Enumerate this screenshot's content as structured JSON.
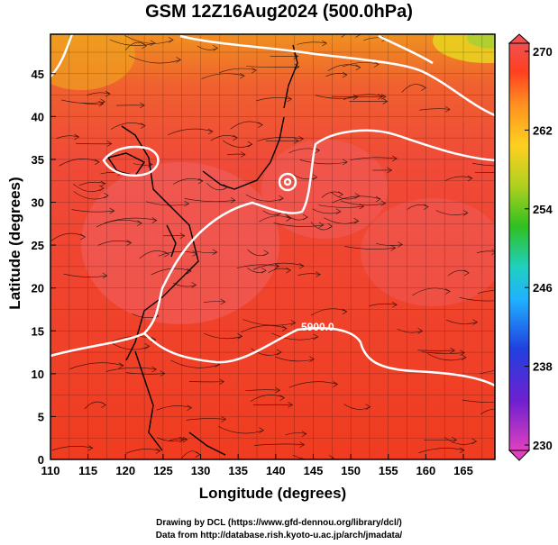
{
  "title": "GSM 12Z16Aug2024 (500.0hPa)",
  "axes": {
    "xlabel": "Longitude (degrees)",
    "ylabel": "Latitude  (degrees)",
    "xticks": [
      "110",
      "115",
      "120",
      "125",
      "130",
      "135",
      "140",
      "145",
      "150",
      "155",
      "160",
      "165"
    ],
    "yticks": [
      "0",
      "5",
      "10",
      "15",
      "20",
      "25",
      "30",
      "35",
      "40",
      "45"
    ]
  },
  "contour_label": "5900.0",
  "colorbar": {
    "min": 230,
    "max": 270,
    "tick_labels": [
      "270",
      "262",
      "254",
      "246",
      "238",
      "230"
    ],
    "stops": [
      "#e040c0",
      "#6020d0",
      "#2040e0",
      "#20b0ff",
      "#20d0c0",
      "#30c020",
      "#b0d020",
      "#ffd020",
      "#ff9020",
      "#ff4020",
      "#f05050"
    ]
  },
  "credits": [
    "Drawing by DCL (https://www.gfd-dennou.org/library/dcl/)",
    "Data from http://database.rish.kyoto-u.ac.jp/arch/jmadata/"
  ]
}
